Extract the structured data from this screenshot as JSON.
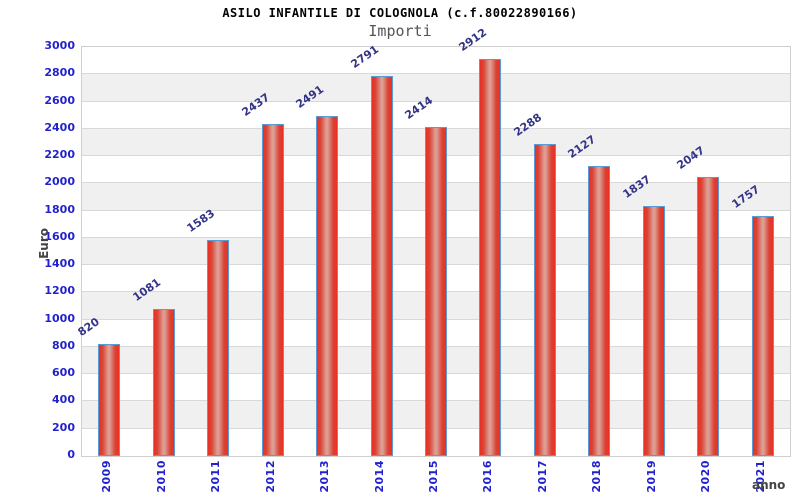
{
  "header": {
    "title": "ASILO INFANTILE DI COLOGNOLA (c.f.80022890166)",
    "subtitle": "Importi"
  },
  "chart_data": {
    "type": "bar",
    "title": "ASILO INFANTILE DI COLOGNOLA (c.f.80022890166)",
    "subtitle": "Importi",
    "xlabel": "anno",
    "ylabel": "Euro",
    "categories": [
      "2009",
      "2010",
      "2011",
      "2012",
      "2013",
      "2014",
      "2015",
      "2016",
      "2017",
      "2018",
      "2019",
      "2020",
      "2021"
    ],
    "values": [
      820,
      1081,
      1583,
      2437,
      2491,
      2791,
      2414,
      2912,
      2288,
      2127,
      1837,
      2047,
      1757
    ],
    "ylim": [
      0,
      3000
    ],
    "ytick_step": 200,
    "y_ticks": [
      0,
      200,
      400,
      600,
      800,
      1000,
      1200,
      1400,
      1600,
      1800,
      2000,
      2200,
      2400,
      2600,
      2800,
      3000
    ],
    "grid": true,
    "background_bands": "alternating horizontal white/gray from bottom",
    "legend": "none",
    "colors": {
      "bar_fill_edge": "#ee2e20",
      "bar_fill_center": "#de9c92",
      "bar_border": "#5b9bd5",
      "tick_label": "#2222cc",
      "value_label": "#333388",
      "band_gray": "#f0f0f0",
      "gridline": "#d9d9d9",
      "title": "#000000",
      "subtitle": "#555555",
      "axis_name": "#444444"
    }
  }
}
